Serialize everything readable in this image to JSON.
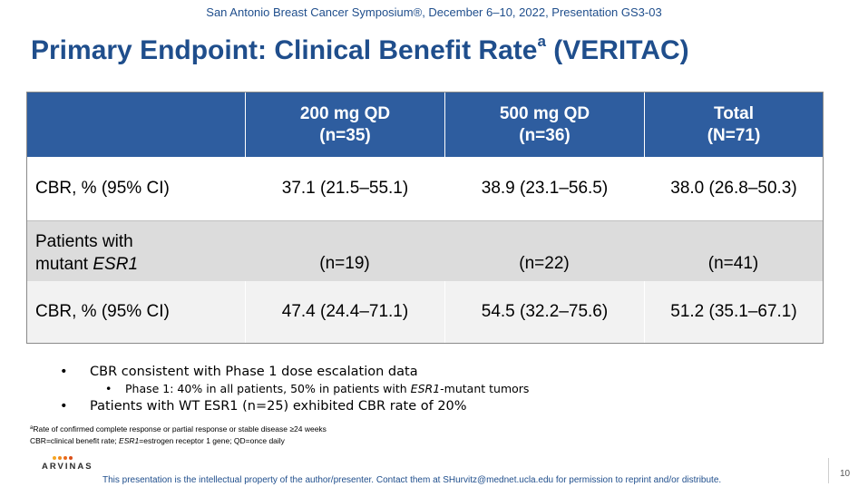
{
  "header": {
    "meeting": "San Antonio Breast Cancer Symposium®, December 6–10, 2022, Presentation GS3-03"
  },
  "title": {
    "main": "Primary Endpoint: Clinical Benefit Rate",
    "superscript": "a",
    "suffix": " (VERITAC)"
  },
  "table": {
    "headers": [
      {
        "line1": "",
        "line2": ""
      },
      {
        "line1": "200 mg QD",
        "line2": "(n=35)"
      },
      {
        "line1": "500 mg QD",
        "line2": "(n=36)"
      },
      {
        "line1": "Total",
        "line2": "(N=71)"
      }
    ],
    "row1": [
      "CBR, % (95% CI)",
      "37.1 (21.5–55.1)",
      "38.9 (23.1–56.5)",
      "38.0 (26.8–50.3)"
    ],
    "row2": {
      "label_line1": "Patients with",
      "label_line2_plain": "mutant ",
      "label_line2_italic": "ESR1",
      "values": [
        "(n=19)",
        "(n=22)",
        "(n=41)"
      ]
    },
    "row3": [
      "CBR, % (95% CI)",
      "47.4 (24.4–71.1)",
      "54.5 (32.2–75.6)",
      "51.2 (35.1–67.1)"
    ]
  },
  "bullets": {
    "b1": "CBR consistent with Phase 1 dose escalation data",
    "b1_sub_part1": "Phase 1: 40% in all patients, 50% in patients with ",
    "b1_sub_italic": "ESR1",
    "b1_sub_part2": "-mutant tumors",
    "b2": "Patients with WT ESR1 (n=25) exhibited CBR rate of 20%",
    "marker": "•"
  },
  "footnotes": {
    "f1_sup": "a",
    "f1": "Rate of confirmed complete response or partial response or stable disease ≥24 weeks",
    "f2_part1": "CBR=clinical benefit rate; ",
    "f2_italic": "ESR1",
    "f2_part2": "=estrogen receptor 1 gene; QD=once daily"
  },
  "footer": {
    "logo_text": "ARVINAS",
    "logo_dot_colors": [
      "#f5a623",
      "#f08a1c",
      "#e8691a",
      "#d94f1a"
    ],
    "disclaimer": "This presentation is the intellectual property of the author/presenter. Contact them at SHurvitz@mednet.ucla.edu for permission to reprint and/or distribute.",
    "page_number": "10"
  },
  "colors": {
    "title_blue": "#1f4e8c",
    "table_header_bg": "#2e5d9f",
    "row_band_gray": "#dcdcdc"
  }
}
